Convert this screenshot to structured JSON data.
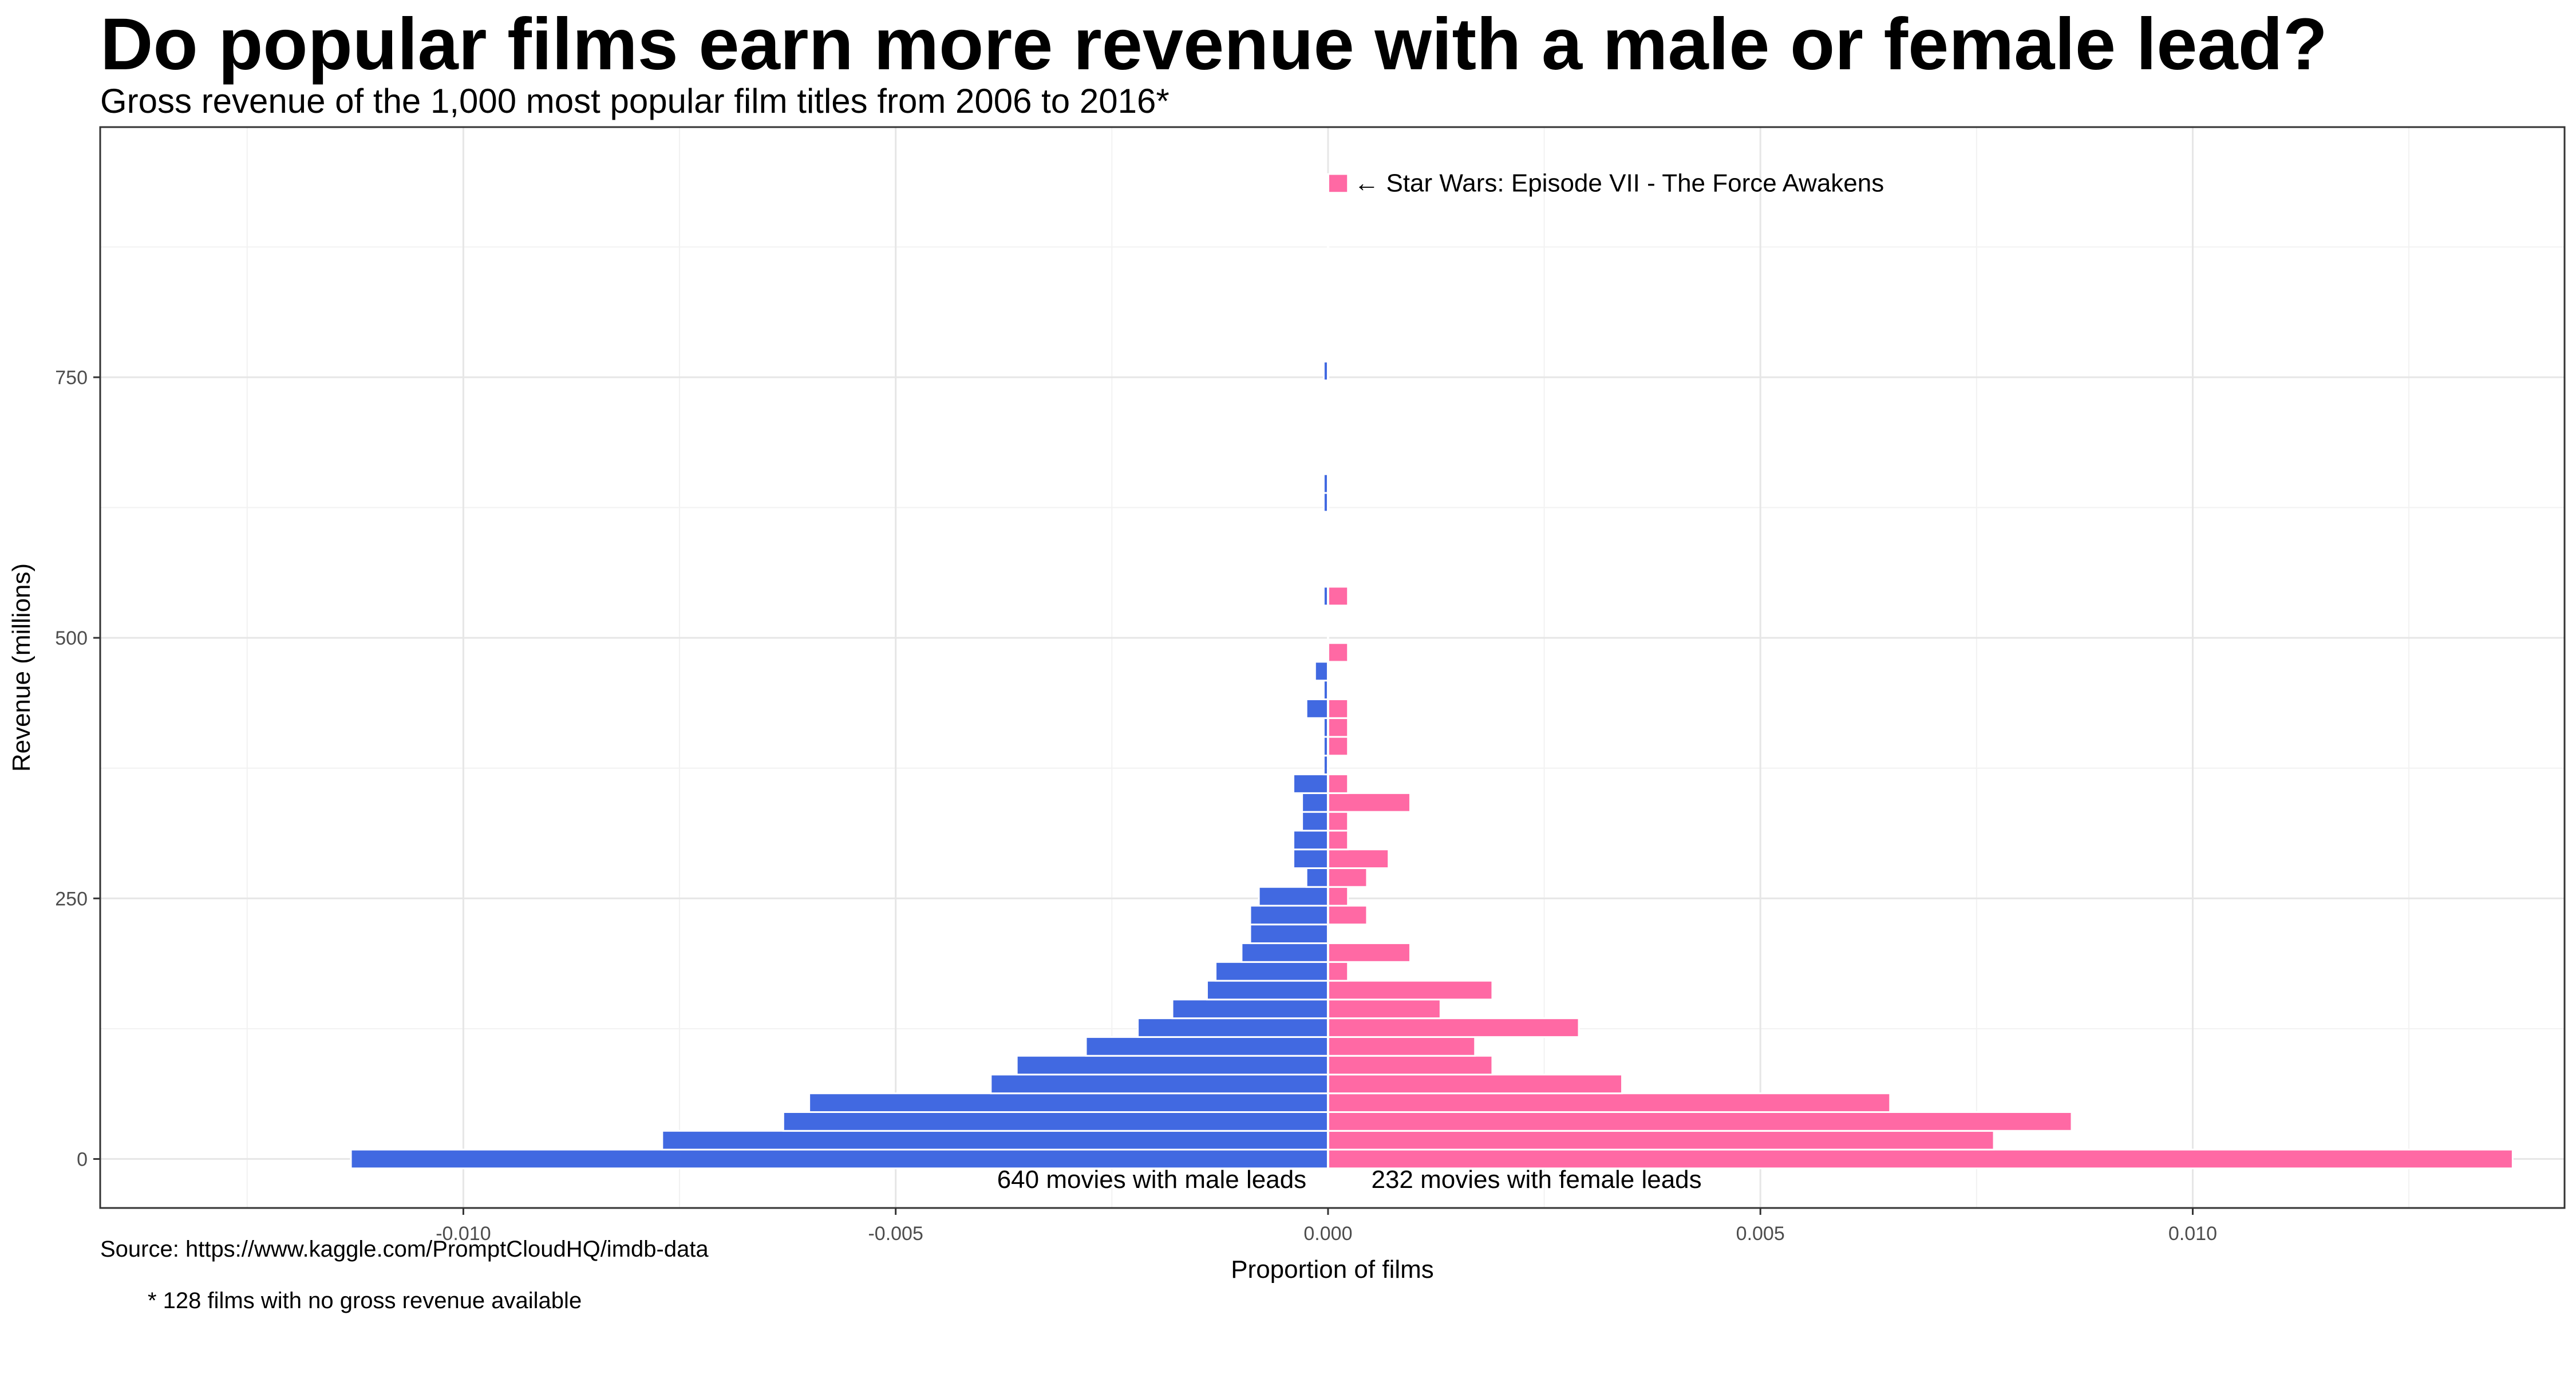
{
  "title": "Do popular films earn more revenue with a male or female lead?",
  "subtitle": "Gross revenue of the 1,000 most popular film titles from 2006 to 2016*",
  "source": "Source: https://www.kaggle.com/PromptCloudHQ/imdb-data",
  "footnote": "* 128 films with no gross revenue available",
  "colors": {
    "male": "#4169E1",
    "female": "#FF69A4"
  },
  "chart_data": {
    "type": "bar",
    "orientation": "horizontal",
    "xlabel": "Proportion of films",
    "ylabel": "Revenue (millions)",
    "xlim": [
      -0.0142,
      0.0143
    ],
    "ylim": [
      -47,
      990
    ],
    "xticks": [
      -0.01,
      -0.005,
      0.0,
      0.005,
      0.01
    ],
    "xtick_labels": [
      "-0.010",
      "-0.005",
      "0.000",
      "0.005",
      "0.010"
    ],
    "yticks": [
      0,
      250,
      500,
      750
    ],
    "ytick_labels": [
      "0",
      "250",
      "500",
      "750"
    ],
    "grid": true,
    "bin_width_millions": 18,
    "revenue_bins_millions": [
      0,
      18,
      36,
      54,
      72,
      90,
      108,
      126,
      144,
      162,
      180,
      198,
      216,
      234,
      252,
      270,
      288,
      306,
      324,
      342,
      360,
      378,
      396,
      414,
      432,
      450,
      468,
      486,
      504,
      522,
      540,
      558,
      576,
      594,
      612,
      630,
      648,
      666,
      684,
      702,
      720,
      738,
      756,
      774,
      792,
      810,
      828,
      846,
      864,
      882,
      900,
      918,
      936
    ],
    "series": [
      {
        "name": "male",
        "values": [
          -0.0113,
          -0.0077,
          -0.0063,
          -0.006,
          -0.0039,
          -0.0036,
          -0.0028,
          -0.0022,
          -0.0018,
          -0.0014,
          -0.0013,
          -0.001,
          -0.0009,
          -0.0009,
          -0.0008,
          -0.00025,
          -0.0004,
          -0.0004,
          -0.0003,
          -0.0003,
          -0.0004,
          -5e-05,
          -5e-05,
          -5e-05,
          -0.00025,
          -5e-05,
          -0.00015,
          0,
          0,
          0,
          0,
          0,
          0,
          0,
          0,
          0,
          0,
          0,
          0,
          0,
          0,
          0,
          0,
          0,
          0,
          0,
          0,
          0,
          0,
          0,
          0,
          0,
          0
        ]
      },
      {
        "name": "female",
        "values": [
          0.0137,
          0.0077,
          0.0086,
          0.0065,
          0.0034,
          0.0019,
          0.0017,
          0.0029,
          0.0013,
          0.0019,
          0.00023,
          0.00095,
          0,
          0.00045,
          0.00023,
          0.00045,
          0.0007,
          0.00023,
          0.00023,
          0.00095,
          0.00023,
          0,
          0.00023,
          0.00023,
          0.00023,
          0,
          0,
          0,
          0,
          0,
          0,
          0,
          0,
          0,
          0,
          0,
          0,
          0,
          0,
          0,
          0,
          0,
          0,
          0,
          0,
          0,
          0,
          0,
          0,
          0,
          0,
          0,
          0
        ]
      }
    ],
    "bar_notes": "index-aligned with revenue_bins_millions; the two separate bars near 500 and 540 plus the ~930 bar are below",
    "extra_bars": [
      {
        "series": "female",
        "revenue_millions": 486,
        "value": 0.00023
      },
      {
        "series": "male",
        "revenue_millions": 540,
        "value": -5e-05
      },
      {
        "series": "female",
        "revenue_millions": 540,
        "value": 0.00023
      },
      {
        "series": "male",
        "revenue_millions": 630,
        "value": -5e-05
      },
      {
        "series": "male",
        "revenue_millions": 648,
        "value": -5e-05
      },
      {
        "series": "male",
        "revenue_millions": 756,
        "value": -5e-05
      },
      {
        "series": "female",
        "revenue_millions": 936,
        "value": 0.00023
      }
    ],
    "annotations": [
      {
        "text": "← Star Wars: Episode VII - The Force Awakens",
        "revenue_millions": 936,
        "x": 0.0003
      },
      {
        "text": "640 movies with male leads",
        "revenue_millions": -20,
        "x": -0.00025,
        "align": "end"
      },
      {
        "text": "232 movies with female leads",
        "revenue_millions": -20,
        "x": 0.0005,
        "align": "start"
      }
    ]
  }
}
